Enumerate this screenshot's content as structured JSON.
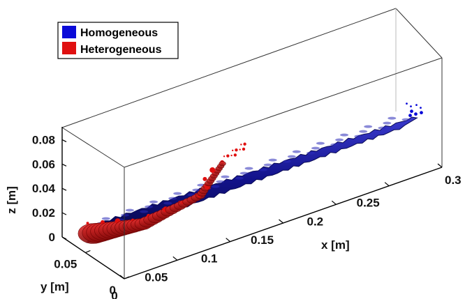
{
  "chart_data": {
    "type": "3d-isosurface",
    "title": "",
    "legend": {
      "placement": "top-left",
      "entries": [
        {
          "label": "Homogeneous",
          "color": "#0a0ad8"
        },
        {
          "label": "Heterogeneous",
          "color": "#e01010"
        }
      ]
    },
    "axes": {
      "x": {
        "label": "x [m]",
        "ticks": [
          "0",
          "0.05",
          "0.1",
          "0.15",
          "0.2",
          "0.25",
          "0.3"
        ],
        "range": [
          0,
          0.3
        ]
      },
      "y": {
        "label": "y [m]",
        "ticks": [
          "0",
          "0.05"
        ],
        "range": [
          0,
          0.08
        ]
      },
      "z": {
        "label": "z [m]",
        "ticks": [
          "0",
          "0.02",
          "0.04",
          "0.06",
          "0.08"
        ],
        "range": [
          0,
          0.09
        ]
      }
    },
    "series": [
      {
        "name": "Homogeneous",
        "color": "#0a0ad8",
        "edge_color": "#0a0a55",
        "shape": "straight plume",
        "centerline": [
          [
            0.0,
            0.04,
            0.02
          ],
          [
            0.3,
            0.04,
            0.02
          ]
        ]
      },
      {
        "name": "Heterogeneous",
        "color": "#e01010",
        "edge_color": "#6a0000",
        "shape": "curved plume",
        "centerline": [
          [
            0.0,
            0.04,
            0.02
          ],
          [
            0.04,
            0.03,
            0.02
          ],
          [
            0.09,
            0.025,
            0.03
          ],
          [
            0.12,
            0.035,
            0.045
          ]
        ]
      }
    ],
    "grid": false,
    "box": true
  }
}
